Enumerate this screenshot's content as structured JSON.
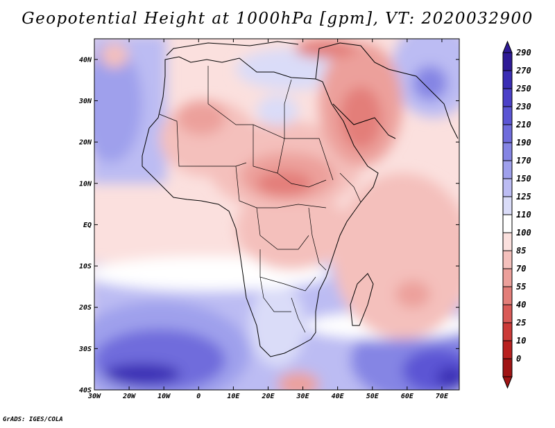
{
  "title": "Geopotential Height at 1000hPa [gpm], VT: 2020032900",
  "credit": "GrADS: IGES/COLA",
  "map": {
    "lon_range": [
      -30,
      75
    ],
    "lat_range": [
      -40,
      45
    ],
    "lat_labels": [
      "40N",
      "30N",
      "20N",
      "10N",
      "EQ",
      "10S",
      "20S",
      "30S",
      "40S"
    ],
    "lon_labels": [
      "30W",
      "20W",
      "10W",
      "0",
      "10E",
      "20E",
      "30E",
      "40E",
      "50E",
      "60E",
      "70E"
    ]
  },
  "colorbar": {
    "labels": [
      "290",
      "270",
      "250",
      "230",
      "210",
      "190",
      "170",
      "150",
      "125",
      "110",
      "100",
      "85",
      "70",
      "55",
      "40",
      "25",
      "10",
      "0"
    ],
    "colors": [
      "#2e1a96",
      "#3a2db4",
      "#4b40c8",
      "#5b55d4",
      "#6f6cdc",
      "#8585e4",
      "#9fa0ec",
      "#bcbcf3",
      "#dadcf8",
      "#ffffff",
      "#fbe0de",
      "#f4c0bc",
      "#eca09b",
      "#e37e79",
      "#d95a57",
      "#cc3a38",
      "#b8201f",
      "#a01414"
    ]
  }
}
